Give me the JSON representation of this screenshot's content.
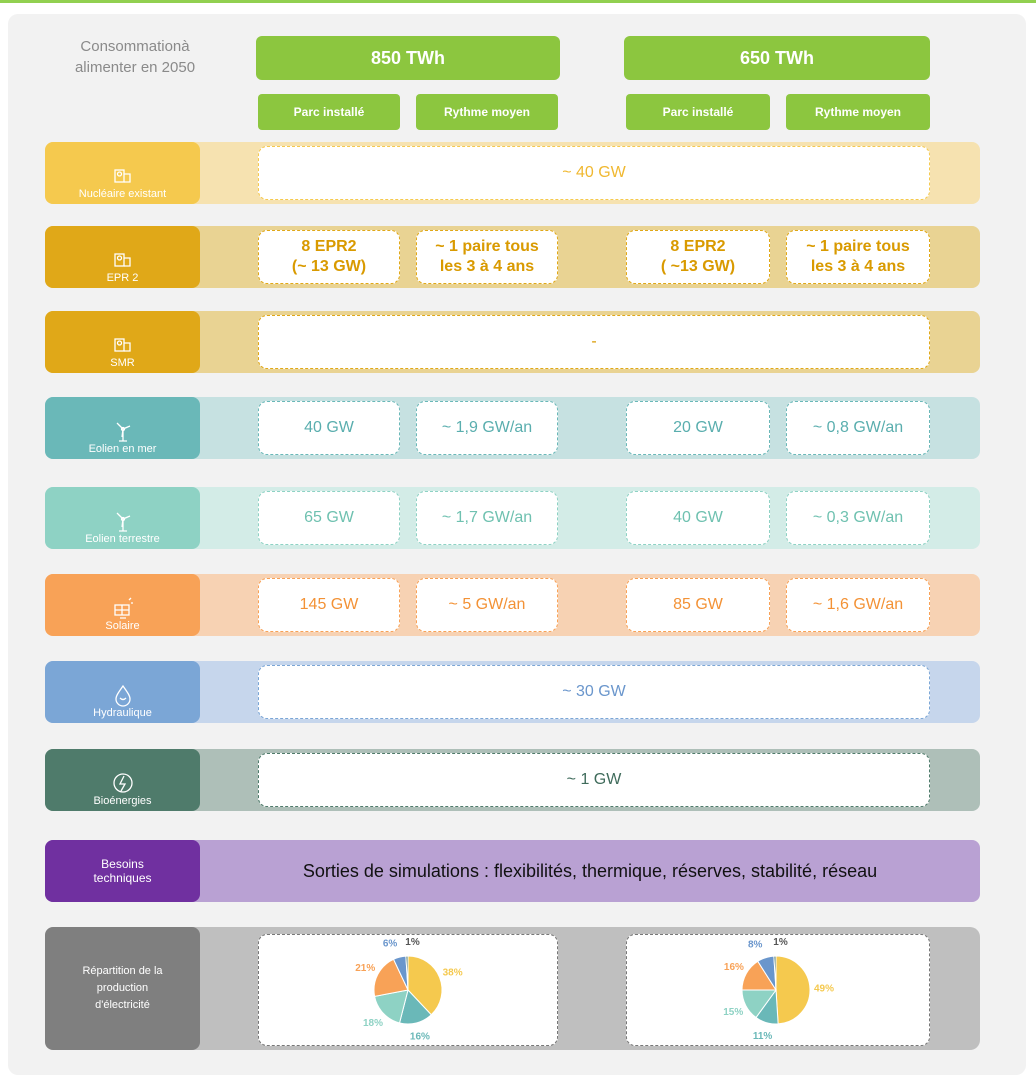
{
  "header": {
    "label": "Consommationà\nalimenter en 2050",
    "scenarios": [
      {
        "title": "850 TWh",
        "columns": [
          "Parc installé",
          "Rythme moyen"
        ]
      },
      {
        "title": "650 TWh",
        "columns": [
          "Parc installé",
          "Rythme moyen"
        ]
      }
    ],
    "color": "#8cc63f"
  },
  "rows": [
    {
      "label": "Nucléaire  existant",
      "color": "#f5c94e",
      "background": "#f6e2b0",
      "text_color": "#f0b830",
      "cells": [
        "~ 40 GW"
      ]
    },
    {
      "label": "EPR 2",
      "color": "#e0a818",
      "background": "#e9d393",
      "text_color": "#d99a00",
      "cells": [
        "8 EPR2\n(~ 13 GW)",
        "~ 1 paire tous\nles 3 à 4 ans",
        "8 EPR2\n(  ~13 GW)",
        "~ 1 paire tous\nles 3 à 4 ans"
      ]
    },
    {
      "label": "SMR",
      "color": "#e0a818",
      "background": "#e9d393",
      "text_color": "#d99a00",
      "cells": [
        "-"
      ]
    },
    {
      "label": "Eolien  en mer",
      "color": "#6ab8b8",
      "background": "#c6e1e1",
      "text_color": "#5aaeae",
      "cells": [
        "40 GW",
        "~  1,9 GW/an",
        "20 GW",
        "~ 0,8 GW/an"
      ]
    },
    {
      "label": "Eolien  terrestre",
      "color": "#8ed2c4",
      "background": "#d3ece7",
      "text_color": "#6fc1b0",
      "cells": [
        "65 GW",
        "~ 1,7 GW/an",
        "40 GW",
        "~ 0,3 GW/an"
      ]
    },
    {
      "label": "Solaire",
      "color": "#f8a257",
      "background": "#f7d2b3",
      "text_color": "#f39236",
      "cells": [
        "145 GW",
        "~ 5 GW/an",
        "85 GW",
        "~ 1,6 GW/an"
      ]
    },
    {
      "label": "Hydraulique",
      "color": "#7ba6d6",
      "background": "#c6d6ec",
      "text_color": "#6a96cc",
      "cells": [
        "~ 30 GW"
      ]
    },
    {
      "label": "Bioénergies",
      "color": "#4f7b6b",
      "background": "#aebfb8",
      "text_color": "#3f6b5b",
      "cells": [
        "~ 1 GW"
      ]
    }
  ],
  "besoins": {
    "label": "Besoins\ntechniques",
    "text": "Sorties de simulations : flexibilités, thermique, réserves, stabilité, réseau",
    "color": "#7030a0",
    "background": "#b9a1d3"
  },
  "repartition": {
    "label": "Répartition  de la\nproduction\nd'électricité",
    "color": "#7f7f7f",
    "background": "#bfbfbf",
    "colors": [
      "#f5c94e",
      "#6ab8b8",
      "#8ed2c4",
      "#f8a257",
      "#6a96cc",
      "#4f7b6b"
    ],
    "pies": [
      {
        "values": [
          38,
          16,
          18,
          21,
          6,
          1
        ],
        "value_labels": [
          "38%",
          "16%",
          "18%",
          "21%",
          "6%",
          "1%"
        ]
      },
      {
        "values": [
          49,
          11,
          15,
          16,
          8,
          1
        ],
        "value_labels": [
          "49%",
          "11%",
          "15%",
          "16%",
          "8%",
          "1%"
        ]
      }
    ]
  }
}
